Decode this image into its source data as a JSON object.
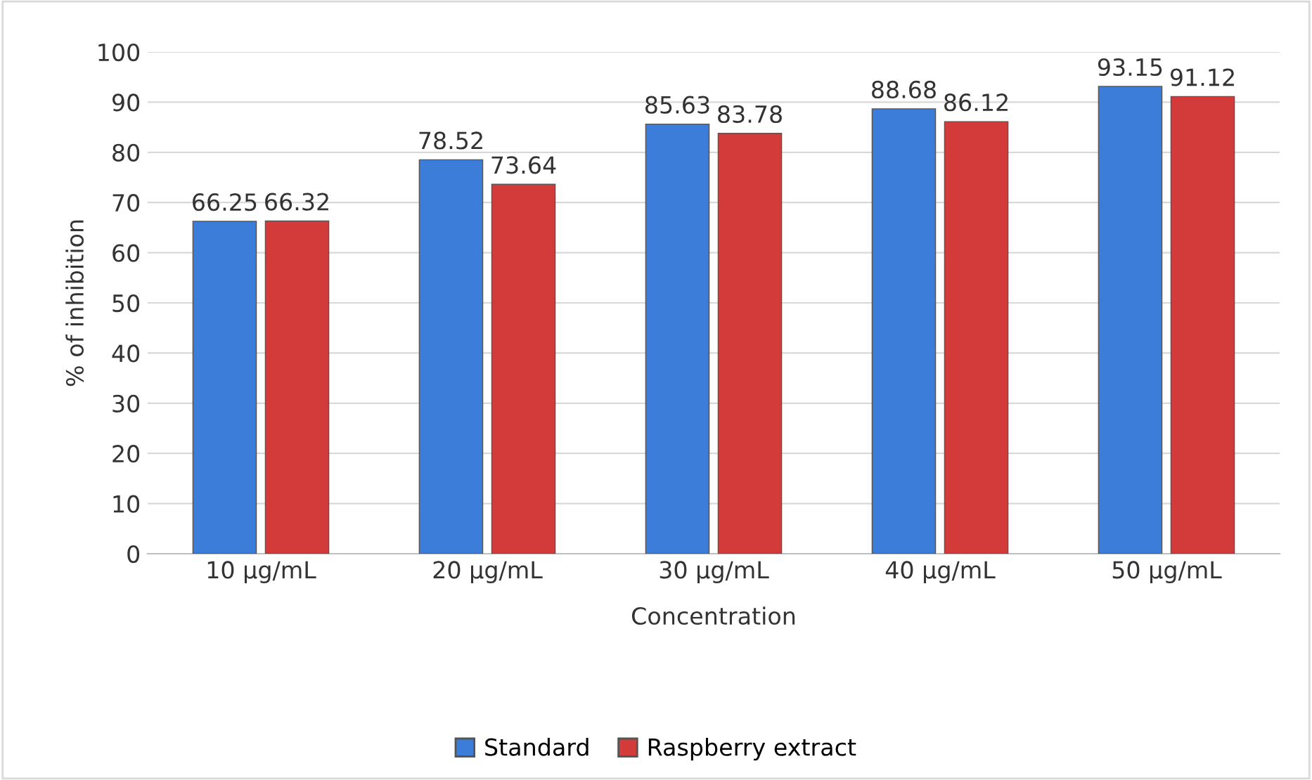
{
  "chart_data": {
    "type": "bar",
    "xlabel": "Concentration",
    "ylabel": "% of inhibition",
    "categories": [
      "10 µg/mL",
      "20 µg/mL",
      "30 µg/mL",
      "40 µg/mL",
      "50 µg/mL"
    ],
    "series": [
      {
        "name": "Standard",
        "color": "#3b7dd8",
        "values": [
          66.25,
          78.52,
          85.63,
          88.68,
          93.15
        ]
      },
      {
        "name": "Raspberry extract",
        "color": "#d33b3b",
        "values": [
          66.32,
          73.64,
          83.78,
          86.12,
          91.12
        ]
      }
    ],
    "ylim": [
      0,
      100
    ],
    "yticks": [
      0,
      10,
      20,
      30,
      40,
      50,
      60,
      70,
      80,
      90,
      100
    ],
    "grid": "y",
    "legend": "bottom",
    "data_labels": true
  }
}
